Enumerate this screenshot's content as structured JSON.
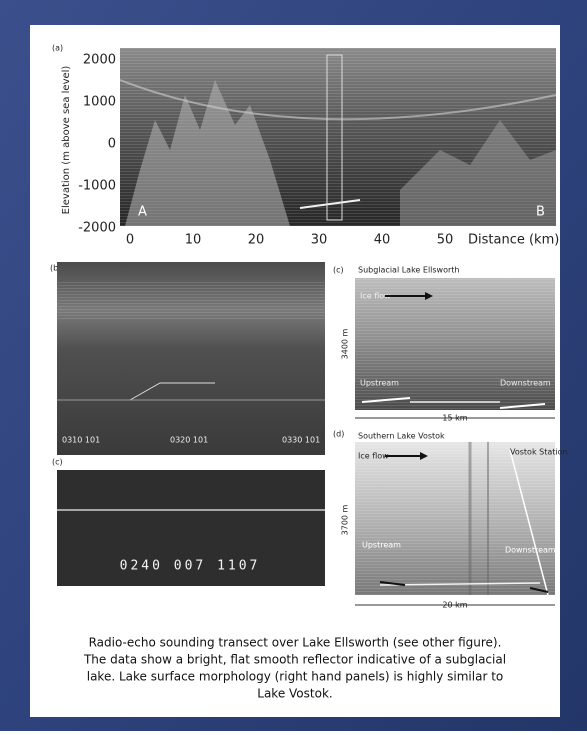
{
  "figure": {
    "panel_a": {
      "label": "(a)",
      "y_axis_label": "Elevation (m above sea level)",
      "y_ticks": [
        2000,
        1000,
        0,
        -1000,
        -2000
      ],
      "x_ticks": [
        0,
        10,
        20,
        30,
        40,
        50
      ],
      "x_axis_label": "Distance (km)",
      "start_label": "A",
      "end_label": "B"
    },
    "panel_b": {
      "label": "(b)",
      "trace_labels": [
        "0310 101",
        "0320 101",
        "0330 101"
      ]
    },
    "panel_c_left": {
      "label": "(c)",
      "readout": "0240  007  1107"
    },
    "panel_c_right": {
      "label": "(c)",
      "title": "Subglacial Lake Ellsworth",
      "ice_flow": "Ice flow",
      "upstream": "Upstream",
      "downstream": "Downstream",
      "scale_x": "15 km",
      "scale_y": "3400 m"
    },
    "panel_d": {
      "label": "(d)",
      "title": "Southern Lake Vostok",
      "ice_flow": "Ice flow",
      "station": "Vostok Station",
      "upstream": "Upstream",
      "downstream": "Downstream",
      "scale_x": "20 km",
      "scale_y": "3700 m"
    }
  },
  "caption": {
    "lines": [
      "Radio-echo sounding transect over Lake Ellsworth (see other figure).",
      "The data show a bright, flat smooth reflector indicative of a subglacial",
      "lake. Lake surface morphology (right hand panels) is highly similar to",
      "Lake Vostok."
    ]
  }
}
